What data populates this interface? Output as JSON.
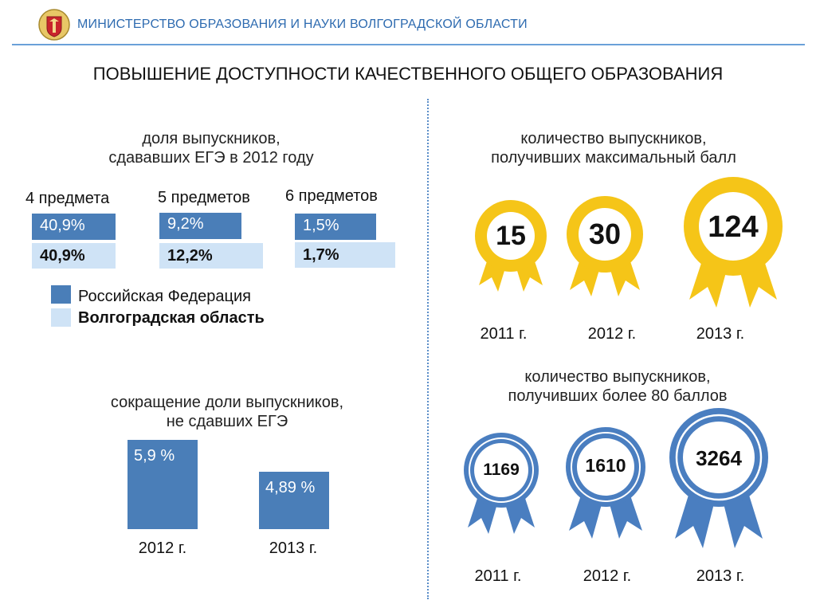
{
  "header": {
    "ministry": "МИНИСТЕРСТВО ОБРАЗОВАНИЯ И НАУКИ ВОЛГОГРАДСКОЙ ОБЛАСТИ",
    "emblem_icon": "coat-of-arms-icon"
  },
  "main_title": "ПОВЫШЕНИЕ ДОСТУПНОСТИ КАЧЕСТВЕННОГО ОБЩЕГО ОБРАЗОВАНИЯ",
  "share": {
    "title_line1": "доля выпускников,",
    "title_line2": "сдававших ЕГЭ в 2012 году",
    "groups": [
      {
        "label": "4 предмета",
        "rf": "40,9%",
        "vo": "40,9%"
      },
      {
        "label": "5 предметов",
        "rf": "9,2%",
        "vo": "12,2%"
      },
      {
        "label": "6 предметов",
        "rf": "1,5%",
        "vo": "1,7%"
      }
    ],
    "legend": {
      "rf": "Российская Федерация",
      "vo": "Волгоградская область"
    },
    "colors": {
      "rf": "#4a7eb8",
      "vo": "#cfe3f6"
    }
  },
  "reduction": {
    "title_line1": "сокращение доли выпускников,",
    "title_line2": "не сдавших ЕГЭ",
    "bars": [
      {
        "year": "2012 г.",
        "value_label": "5,9 %",
        "value": 5.9
      },
      {
        "year": "2013 г.",
        "value_label": "4,89 %",
        "value": 4.89
      }
    ]
  },
  "max_score": {
    "title_line1": "количество выпускников,",
    "title_line2": "получивших максимальный балл",
    "color": "#f5c518",
    "medals": [
      {
        "year": "2011 г.",
        "value": "15"
      },
      {
        "year": "2012 г.",
        "value": "30"
      },
      {
        "year": "2013 г.",
        "value": "124"
      }
    ]
  },
  "over80": {
    "title_line1": "количество выпускников,",
    "title_line2": "получивших более 80 баллов",
    "color": "#4a7ec0",
    "medals": [
      {
        "year": "2011 г.",
        "value": "1169"
      },
      {
        "year": "2012 г.",
        "value": "1610"
      },
      {
        "year": "2013 г.",
        "value": "3264"
      }
    ]
  }
}
